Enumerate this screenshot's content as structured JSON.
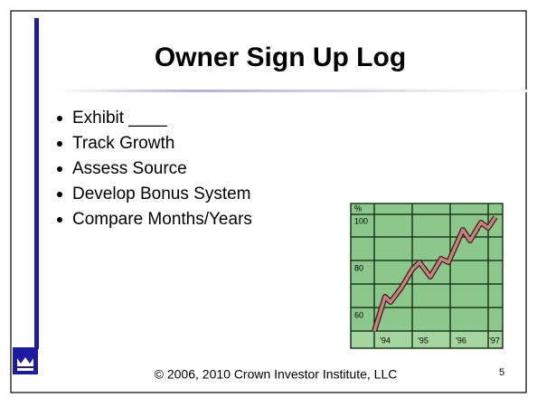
{
  "title": "Owner Sign Up Log",
  "bullets": [
    "Exhibit ____",
    "Track Growth",
    "Assess Source",
    "Develop Bonus System",
    "Compare Months/Years"
  ],
  "clipart": {
    "unit": "%",
    "y_labels": [
      "100",
      "80",
      "60"
    ],
    "x_labels": [
      "'94",
      "'95",
      "'96",
      "'97"
    ]
  },
  "footer": "© 2006, 2010 Crown Investor Institute, LLC",
  "page_number": "5"
}
